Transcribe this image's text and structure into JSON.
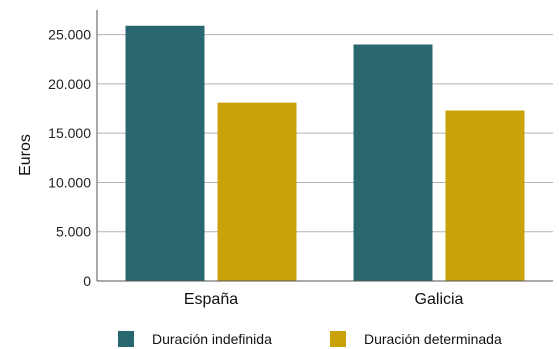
{
  "chart_data": {
    "type": "bar",
    "title": "",
    "xlabel": "",
    "ylabel": "Euros",
    "ylim": [
      0,
      27500
    ],
    "y_ticks": [
      0,
      5000,
      10000,
      15000,
      20000,
      25000
    ],
    "y_tick_labels": [
      "0",
      "5.000",
      "10.000",
      "15.000",
      "20.000",
      "25.000"
    ],
    "categories": [
      "España",
      "Galicia"
    ],
    "series": [
      {
        "name": "Duración indefinida",
        "color": "#28676d",
        "values": [
          25900,
          24000
        ]
      },
      {
        "name": "Duración determinada",
        "color": "#c9a20a",
        "values": [
          18100,
          17300
        ]
      }
    ],
    "grid": true,
    "legend_position": "bottom"
  }
}
